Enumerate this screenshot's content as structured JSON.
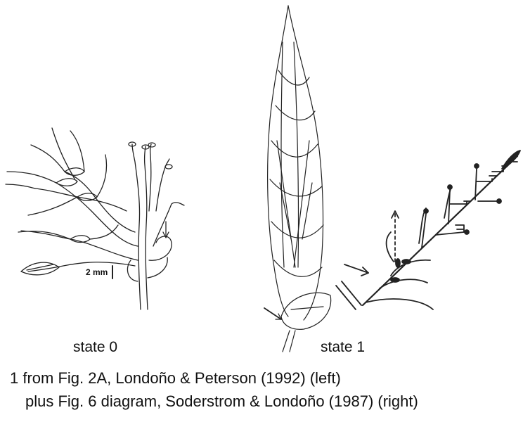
{
  "panels": {
    "left": {
      "state_label": "state 0",
      "scale_label": "2 mm"
    },
    "right": {
      "state_label": "state 1"
    }
  },
  "caption": {
    "line1": "1 from Fig. 2A, Londoño & Peterson (1992) (left)",
    "line2": "plus Fig. 6 diagram, Soderstrom & Londoño (1987) (right)"
  }
}
